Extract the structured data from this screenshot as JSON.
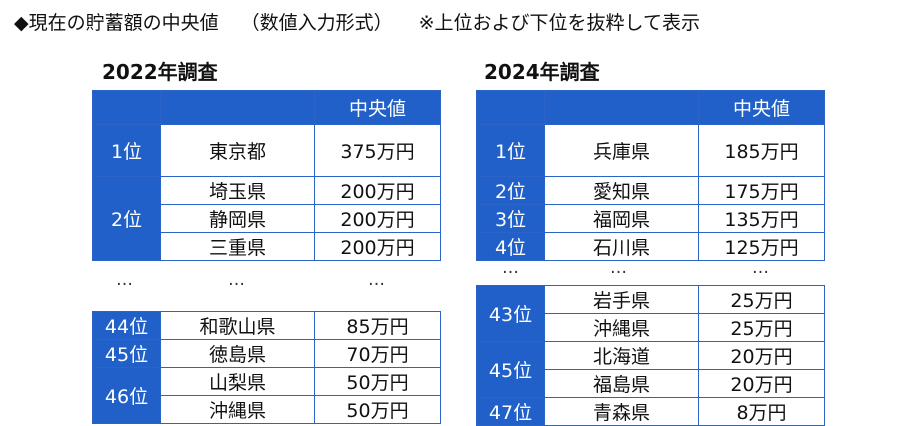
{
  "title": {
    "part1": "◆現在の貯蓄額の中央値",
    "part2": "（数値入力形式）",
    "part3": "※上位および下位を抜粋して表示"
  },
  "left": {
    "label": "2022年調査",
    "header": "中央値",
    "top_rows": [
      {
        "rank": "1位",
        "pref": "東京都",
        "value": "375万円"
      },
      {
        "rank": "2位",
        "pref": "埼玉県",
        "value": "200万円"
      },
      {
        "rank": "",
        "pref": "静岡県",
        "value": "200万円"
      },
      {
        "rank": "",
        "pref": "三重県",
        "value": "200万円"
      }
    ],
    "ellipsis": [
      "…",
      "…",
      "…"
    ],
    "bottom_rows": [
      {
        "rank": "44位",
        "pref": "和歌山県",
        "value": "85万円"
      },
      {
        "rank": "45位",
        "pref": "徳島県",
        "value": "70万円"
      },
      {
        "rank": "46位",
        "pref": "山梨県",
        "value": "50万円"
      },
      {
        "rank": "",
        "pref": "沖縄県",
        "value": "50万円"
      }
    ]
  },
  "right": {
    "label": "2024年調査",
    "header": "中央値",
    "top_rows": [
      {
        "rank": "1位",
        "pref": "兵庫県",
        "value": "185万円"
      },
      {
        "rank": "2位",
        "pref": "愛知県",
        "value": "175万円"
      },
      {
        "rank": "3位",
        "pref": "福岡県",
        "value": "135万円"
      },
      {
        "rank": "4位",
        "pref": "石川県",
        "value": "125万円"
      }
    ],
    "ellipsis": [
      "…",
      "…",
      "…"
    ],
    "bottom_rows": [
      {
        "rank": "43位",
        "pref": "岩手県",
        "value": "25万円"
      },
      {
        "rank": "",
        "pref": "沖縄県",
        "value": "25万円"
      },
      {
        "rank": "45位",
        "pref": "北海道",
        "value": "20万円"
      },
      {
        "rank": "",
        "pref": "福島県",
        "value": "20万円"
      },
      {
        "rank": "47位",
        "pref": "青森県",
        "value": "8万円"
      }
    ]
  }
}
